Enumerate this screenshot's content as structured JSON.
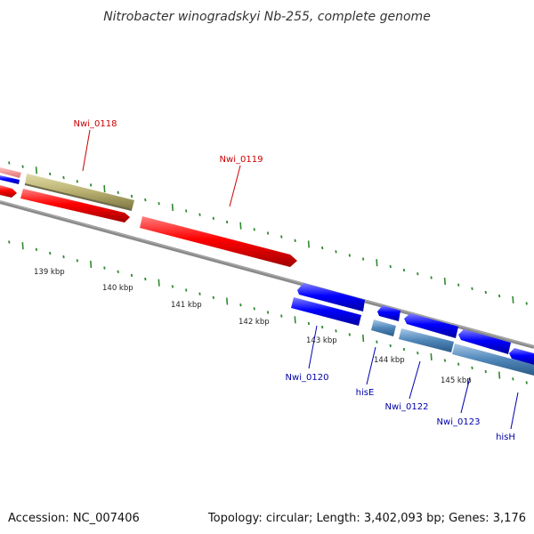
{
  "title": "Nitrobacter winogradskyi Nb-255, complete genome",
  "footer": {
    "accession": "Accession: NC_007406",
    "summary": "Topology: circular; Length: 3,402,093 bp; Genes: 3,176"
  },
  "scale": {
    "unit": "kbp",
    "ticks": [
      {
        "label": "139 kbp"
      },
      {
        "label": "140 kbp"
      },
      {
        "label": "141 kbp"
      },
      {
        "label": "142 kbp"
      },
      {
        "label": "143 kbp"
      },
      {
        "label": "144 kbp"
      },
      {
        "label": "145 kbp"
      }
    ]
  },
  "genes": [
    {
      "name": "Nwi_0118",
      "strand": "forward"
    },
    {
      "name": "Nwi_0119",
      "strand": "forward"
    },
    {
      "name": "Nwi_0120",
      "strand": "reverse"
    },
    {
      "name": "hisE",
      "strand": "reverse"
    },
    {
      "name": "Nwi_0122",
      "strand": "reverse"
    },
    {
      "name": "Nwi_0123",
      "strand": "reverse"
    },
    {
      "name": "hisH",
      "strand": "reverse"
    }
  ],
  "colors": {
    "forward_cds": "#ff0000",
    "reverse_cds": "#0000ff",
    "forward_feature": "#b8b070",
    "reverse_feature": "#4f86b8",
    "backbone": "#7a7a7a",
    "tick": "#2f8a2f",
    "label_forward": "#cc0000",
    "label_reverse": "#0000aa"
  }
}
